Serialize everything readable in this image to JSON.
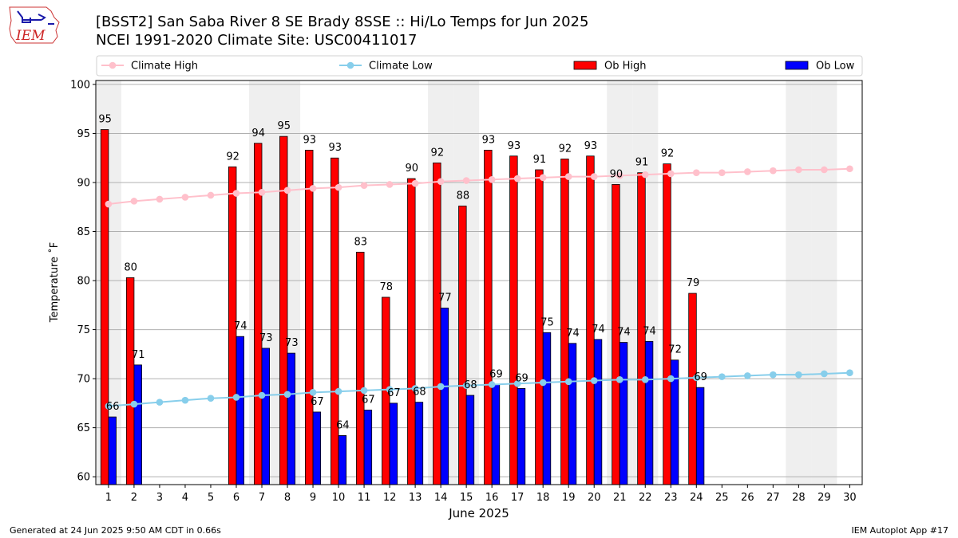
{
  "header": {
    "title_line1": "[BSST2] San Saba River 8 SE Brady 8SSE :: Hi/Lo Temps for Jun 2025",
    "title_line2": "NCEI 1991-2020 Climate Site: USC00411017"
  },
  "logo": {
    "text": "IEM",
    "icon": "iowa-state-outline-icon"
  },
  "footer": {
    "left": "Generated at 24 Jun 2025 9:50 AM CDT in 0.66s",
    "right": "IEM Autoplot App #17"
  },
  "chart_data": {
    "type": "bar",
    "xlabel": "June 2025",
    "ylabel": "Temperature ˚F",
    "ylim": [
      59.2,
      100.4
    ],
    "yticks": [
      60,
      65,
      70,
      75,
      80,
      85,
      90,
      95,
      100
    ],
    "days": [
      1,
      2,
      3,
      4,
      5,
      6,
      7,
      8,
      9,
      10,
      11,
      12,
      13,
      14,
      15,
      16,
      17,
      18,
      19,
      20,
      21,
      22,
      23,
      24,
      25,
      26,
      27,
      28,
      29,
      30
    ],
    "weekend_days": [
      1,
      7,
      8,
      14,
      15,
      21,
      22,
      28,
      29
    ],
    "grid": "horizontal",
    "legend_position": "top",
    "series": [
      {
        "name": "Climate High",
        "kind": "line",
        "color": "#ffc0cb",
        "values": [
          87.8,
          88.1,
          88.3,
          88.5,
          88.7,
          88.9,
          89.0,
          89.2,
          89.4,
          89.5,
          89.7,
          89.8,
          89.9,
          90.1,
          90.2,
          90.3,
          90.4,
          90.5,
          90.6,
          90.6,
          90.7,
          90.8,
          90.9,
          91.0,
          91.0,
          91.1,
          91.2,
          91.3,
          91.3,
          91.4
        ]
      },
      {
        "name": "Climate Low",
        "kind": "line",
        "color": "#87ceeb",
        "values": [
          67.2,
          67.4,
          67.6,
          67.8,
          68.0,
          68.1,
          68.3,
          68.4,
          68.6,
          68.7,
          68.8,
          68.9,
          69.0,
          69.2,
          69.3,
          69.4,
          69.5,
          69.6,
          69.7,
          69.8,
          69.9,
          69.9,
          70.0,
          70.1,
          70.2,
          70.3,
          70.4,
          70.4,
          70.5,
          70.6
        ]
      },
      {
        "name": "Ob High",
        "kind": "bar",
        "color": "#ff0000",
        "values": [
          95.4,
          80.3,
          null,
          null,
          null,
          91.6,
          94.0,
          94.7,
          93.3,
          92.5,
          82.9,
          78.3,
          90.4,
          92.0,
          87.6,
          93.3,
          92.7,
          91.3,
          92.4,
          92.7,
          89.8,
          91.0,
          91.9,
          78.7,
          null,
          null,
          null,
          null,
          null,
          null
        ],
        "labels": [
          "95",
          "80",
          "",
          "",
          "",
          "92",
          "94",
          "95",
          "93",
          "93",
          "83",
          "78",
          "90",
          "92",
          "88",
          "93",
          "93",
          "91",
          "92",
          "93",
          "90",
          "91",
          "92",
          "79",
          "",
          "",
          "",
          "",
          "",
          ""
        ]
      },
      {
        "name": "Ob Low",
        "kind": "bar",
        "color": "#0000ff",
        "values": [
          66.1,
          71.4,
          null,
          null,
          null,
          74.3,
          73.1,
          72.6,
          66.6,
          64.2,
          66.8,
          67.5,
          67.6,
          77.2,
          68.3,
          69.4,
          69.0,
          74.7,
          73.6,
          74.0,
          73.7,
          73.8,
          71.9,
          69.1,
          null,
          null,
          null,
          null,
          null,
          null
        ],
        "labels": [
          "66",
          "71",
          "",
          "",
          "",
          "74",
          "73",
          "73",
          "67",
          "64",
          "67",
          "67",
          "68",
          "77",
          "68",
          "69",
          "69",
          "75",
          "74",
          "74",
          "74",
          "74",
          "72",
          "69",
          "",
          "",
          "",
          "",
          "",
          ""
        ]
      }
    ]
  }
}
